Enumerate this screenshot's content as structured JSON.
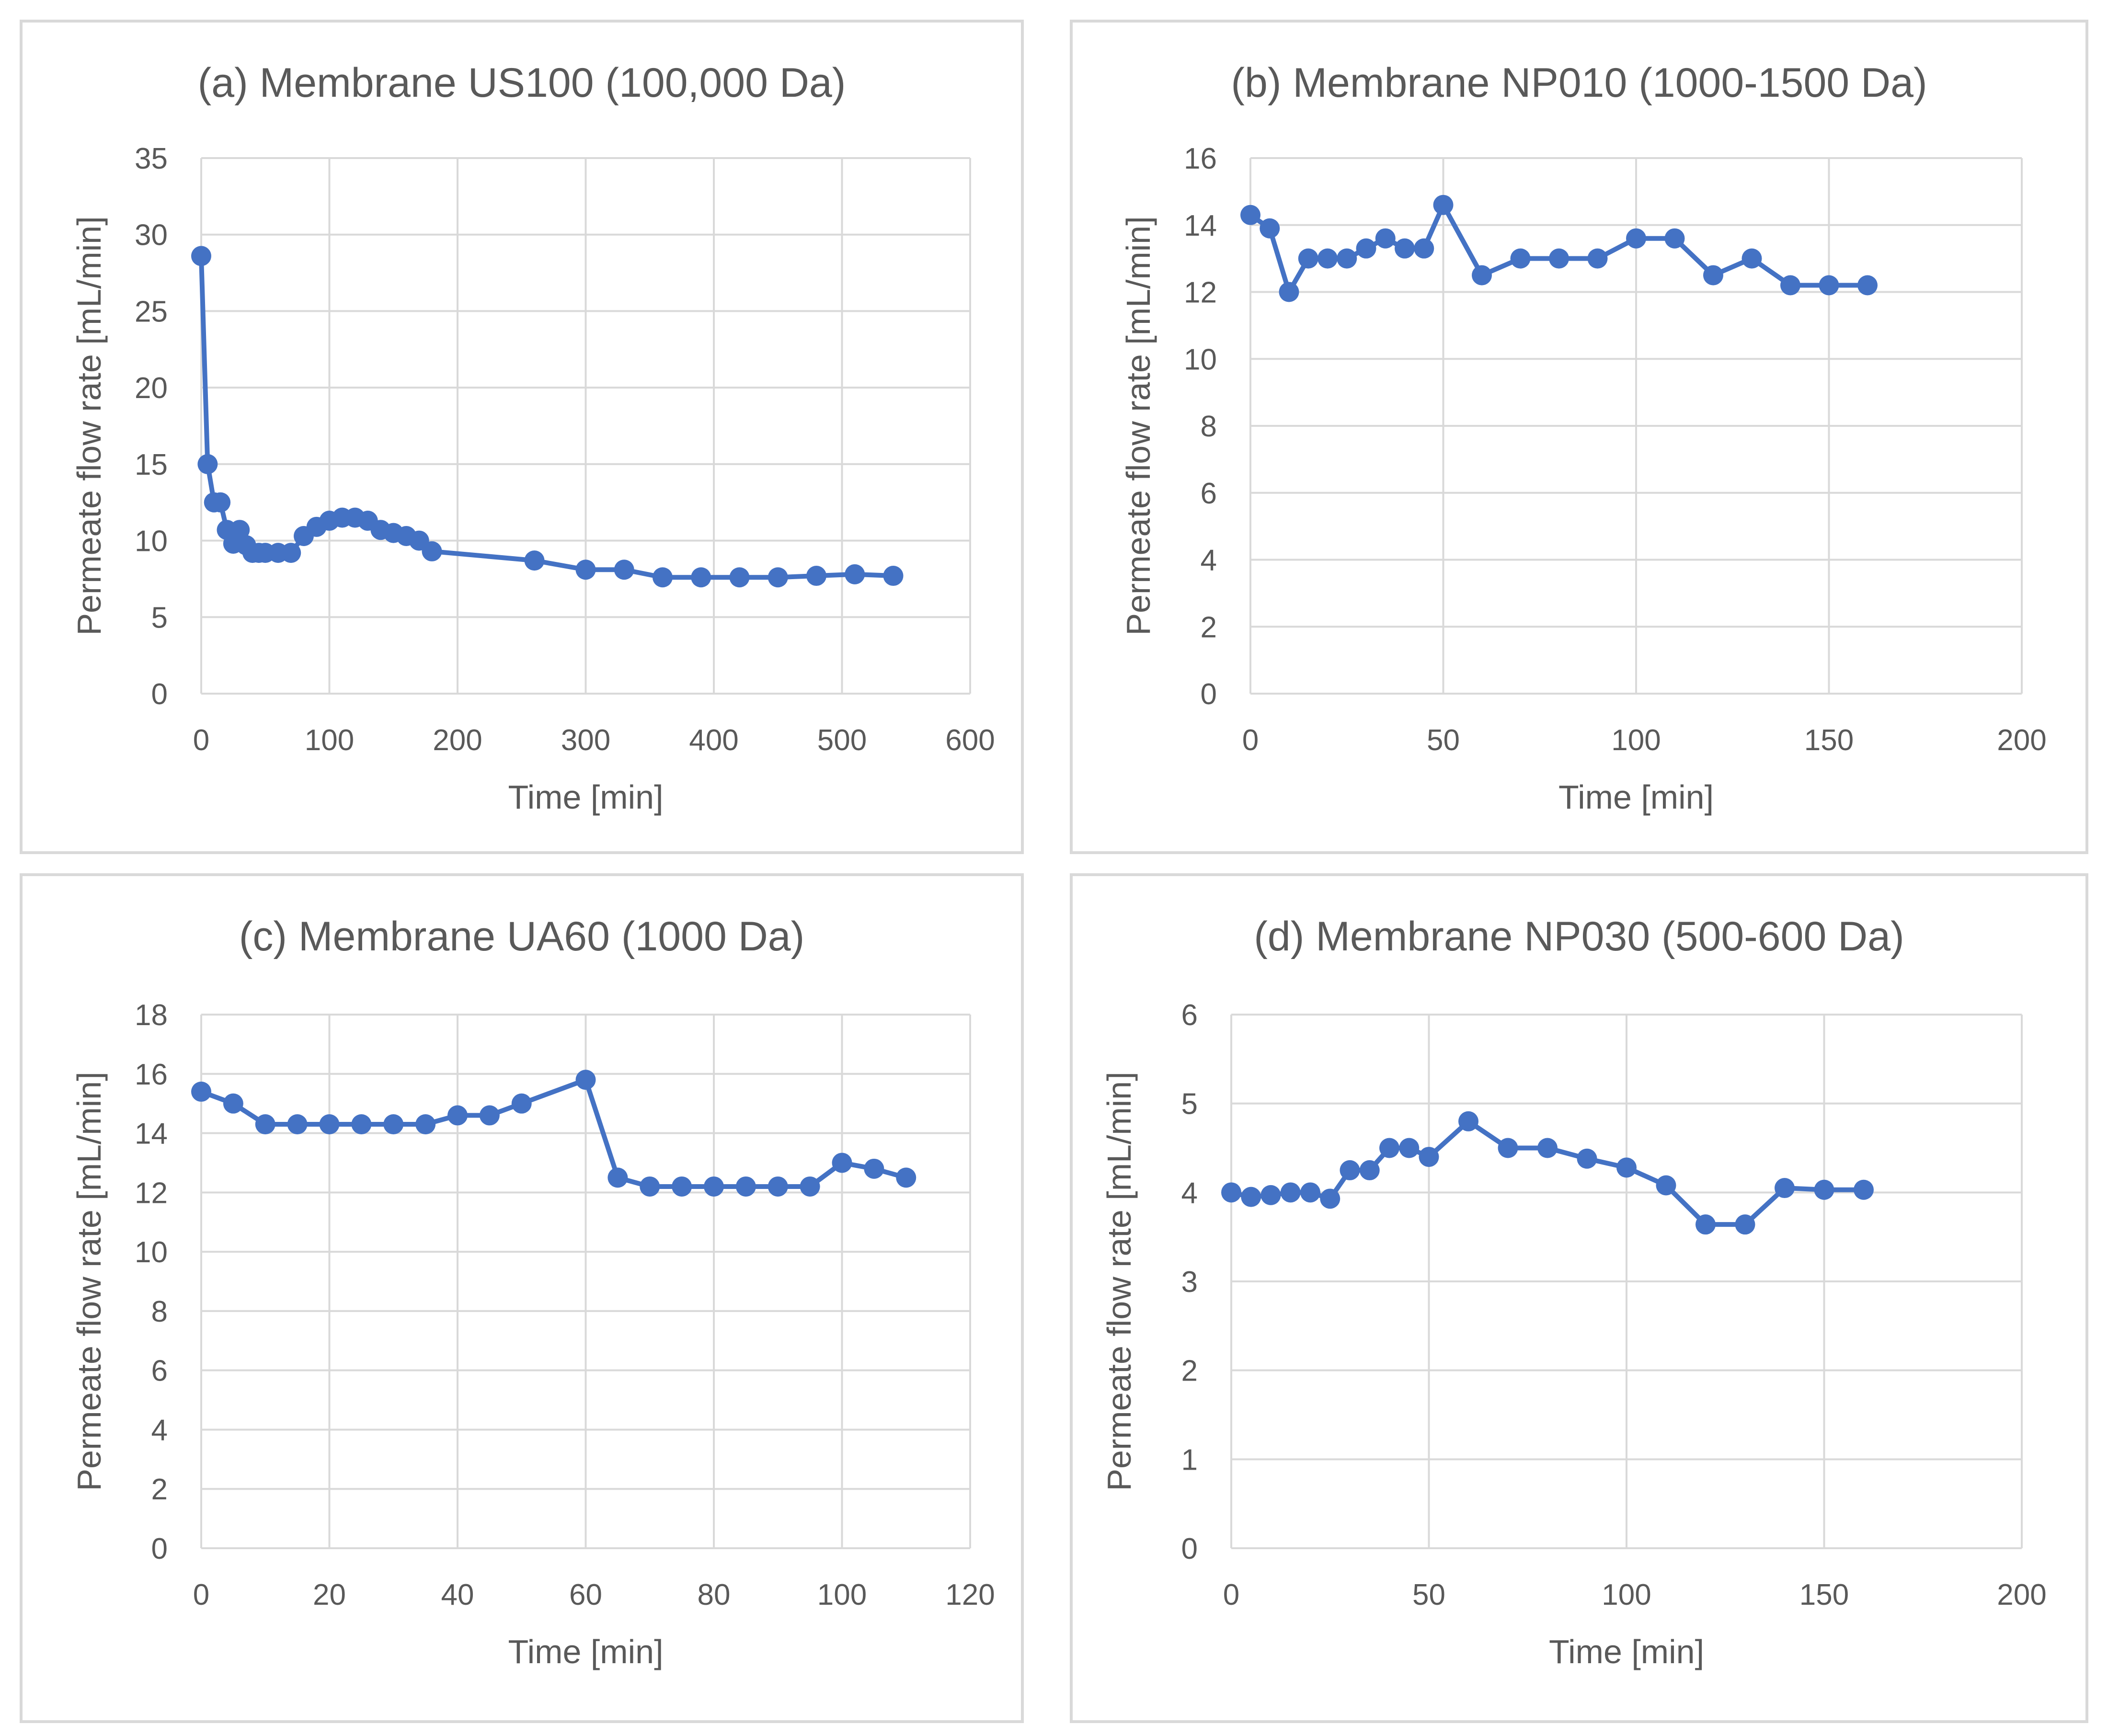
{
  "colors": {
    "series": "#4472C4",
    "grid": "#D9D9D9",
    "text": "#595959",
    "title": "#595959",
    "panel_border": "#D9D9D9"
  },
  "chart_data": [
    {
      "type": "line",
      "panel": "a",
      "title": "(a) Membrane US100 (100,000 Da)",
      "xlabel": "Time [min]",
      "ylabel": "Permeate flow rate [mL/min]",
      "xlim": [
        0,
        600
      ],
      "ylim": [
        0,
        35
      ],
      "xticks": [
        0,
        100,
        200,
        300,
        400,
        500,
        600
      ],
      "yticks": [
        0,
        5,
        10,
        15,
        20,
        25,
        30,
        35
      ],
      "xtick_labels": [
        "0",
        "100",
        "200",
        "300",
        "400",
        "500",
        "600"
      ],
      "ytick_labels": [
        "0",
        "5",
        "10",
        "15",
        "20",
        "25",
        "30",
        "35"
      ],
      "series": [
        {
          "name": "US100",
          "x": [
            0,
            5,
            10,
            15,
            20,
            25,
            30,
            35,
            40,
            45,
            50,
            60,
            70,
            80,
            90,
            100,
            110,
            120,
            130,
            140,
            150,
            160,
            170,
            180,
            260,
            300,
            330,
            360,
            390,
            420,
            450,
            480,
            510,
            540
          ],
          "y": [
            28.6,
            15.0,
            12.5,
            12.5,
            10.7,
            9.8,
            10.7,
            9.7,
            9.2,
            9.2,
            9.2,
            9.2,
            9.2,
            10.3,
            10.9,
            11.3,
            11.5,
            11.5,
            11.3,
            10.7,
            10.5,
            10.3,
            10.0,
            9.3,
            8.7,
            8.1,
            8.1,
            7.6,
            7.6,
            7.6,
            7.6,
            7.7,
            7.8,
            7.7
          ]
        }
      ]
    },
    {
      "type": "line",
      "panel": "b",
      "title": "(b) Membrane NP010 (1000-1500 Da)",
      "xlabel": "Time [min]",
      "ylabel": "Permeate flow rate [mL/min]",
      "xlim": [
        0,
        200
      ],
      "ylim": [
        0,
        16
      ],
      "xticks": [
        0,
        50,
        100,
        150,
        200
      ],
      "yticks": [
        0,
        2,
        4,
        6,
        8,
        10,
        12,
        14,
        16
      ],
      "xtick_labels": [
        "0",
        "50",
        "100",
        "150",
        "200"
      ],
      "ytick_labels": [
        "0",
        "2",
        "4",
        "6",
        "8",
        "10",
        "12",
        "14",
        "16"
      ],
      "series": [
        {
          "name": "NP010",
          "x": [
            0,
            5,
            10,
            15,
            20,
            25,
            30,
            35,
            40,
            45,
            50,
            60,
            70,
            80,
            90,
            100,
            110,
            120,
            130,
            140,
            150,
            160
          ],
          "y": [
            14.3,
            13.9,
            12.0,
            13.0,
            13.0,
            13.0,
            13.3,
            13.6,
            13.3,
            13.3,
            14.6,
            12.5,
            13.0,
            13.0,
            13.0,
            13.6,
            13.6,
            12.5,
            13.0,
            12.2,
            12.2,
            12.2
          ]
        }
      ]
    },
    {
      "type": "line",
      "panel": "c",
      "title": "(c) Membrane UA60 (1000 Da)",
      "xlabel": "Time [min]",
      "ylabel": "Permeate flow rate [mL/min]",
      "xlim": [
        0,
        120
      ],
      "ylim": [
        0,
        18
      ],
      "xticks": [
        0,
        20,
        40,
        60,
        80,
        100,
        120
      ],
      "yticks": [
        0,
        2,
        4,
        6,
        8,
        10,
        12,
        14,
        16,
        18
      ],
      "xtick_labels": [
        "0",
        "20",
        "40",
        "60",
        "80",
        "100",
        "120"
      ],
      "ytick_labels": [
        "0",
        "2",
        "4",
        "6",
        "8",
        "10",
        "12",
        "14",
        "16",
        "18"
      ],
      "series": [
        {
          "name": "UA60",
          "x": [
            0,
            5,
            10,
            15,
            20,
            25,
            30,
            35,
            40,
            45,
            50,
            60,
            65,
            70,
            75,
            80,
            85,
            90,
            95,
            100,
            105,
            110
          ],
          "y": [
            15.4,
            15.0,
            14.3,
            14.3,
            14.3,
            14.3,
            14.3,
            14.3,
            14.6,
            14.6,
            15.0,
            15.8,
            12.5,
            12.2,
            12.2,
            12.2,
            12.2,
            12.2,
            12.2,
            13.0,
            12.8,
            12.5
          ]
        }
      ]
    },
    {
      "type": "line",
      "panel": "d",
      "title": "(d) Membrane NP030 (500-600 Da)",
      "xlabel": "Time [min]",
      "ylabel": "Permeate flow rate [mL/min]",
      "xlim": [
        0,
        200
      ],
      "ylim": [
        0,
        6
      ],
      "xticks": [
        0,
        50,
        100,
        150,
        200
      ],
      "yticks": [
        0,
        1,
        2,
        3,
        4,
        5,
        6
      ],
      "xtick_labels": [
        "0",
        "50",
        "100",
        "150",
        "200"
      ],
      "ytick_labels": [
        "0",
        "1",
        "2",
        "3",
        "4",
        "5",
        "6"
      ],
      "series": [
        {
          "name": "NP030",
          "x": [
            0,
            5,
            10,
            15,
            20,
            25,
            30,
            35,
            40,
            45,
            50,
            60,
            70,
            80,
            90,
            100,
            110,
            120,
            130,
            140,
            150,
            160
          ],
          "y": [
            4.0,
            3.95,
            3.97,
            4.0,
            4.0,
            3.93,
            4.25,
            4.25,
            4.5,
            4.5,
            4.4,
            4.8,
            4.5,
            4.5,
            4.38,
            4.28,
            4.08,
            3.64,
            3.64,
            4.05,
            4.03,
            4.03
          ]
        }
      ]
    }
  ]
}
